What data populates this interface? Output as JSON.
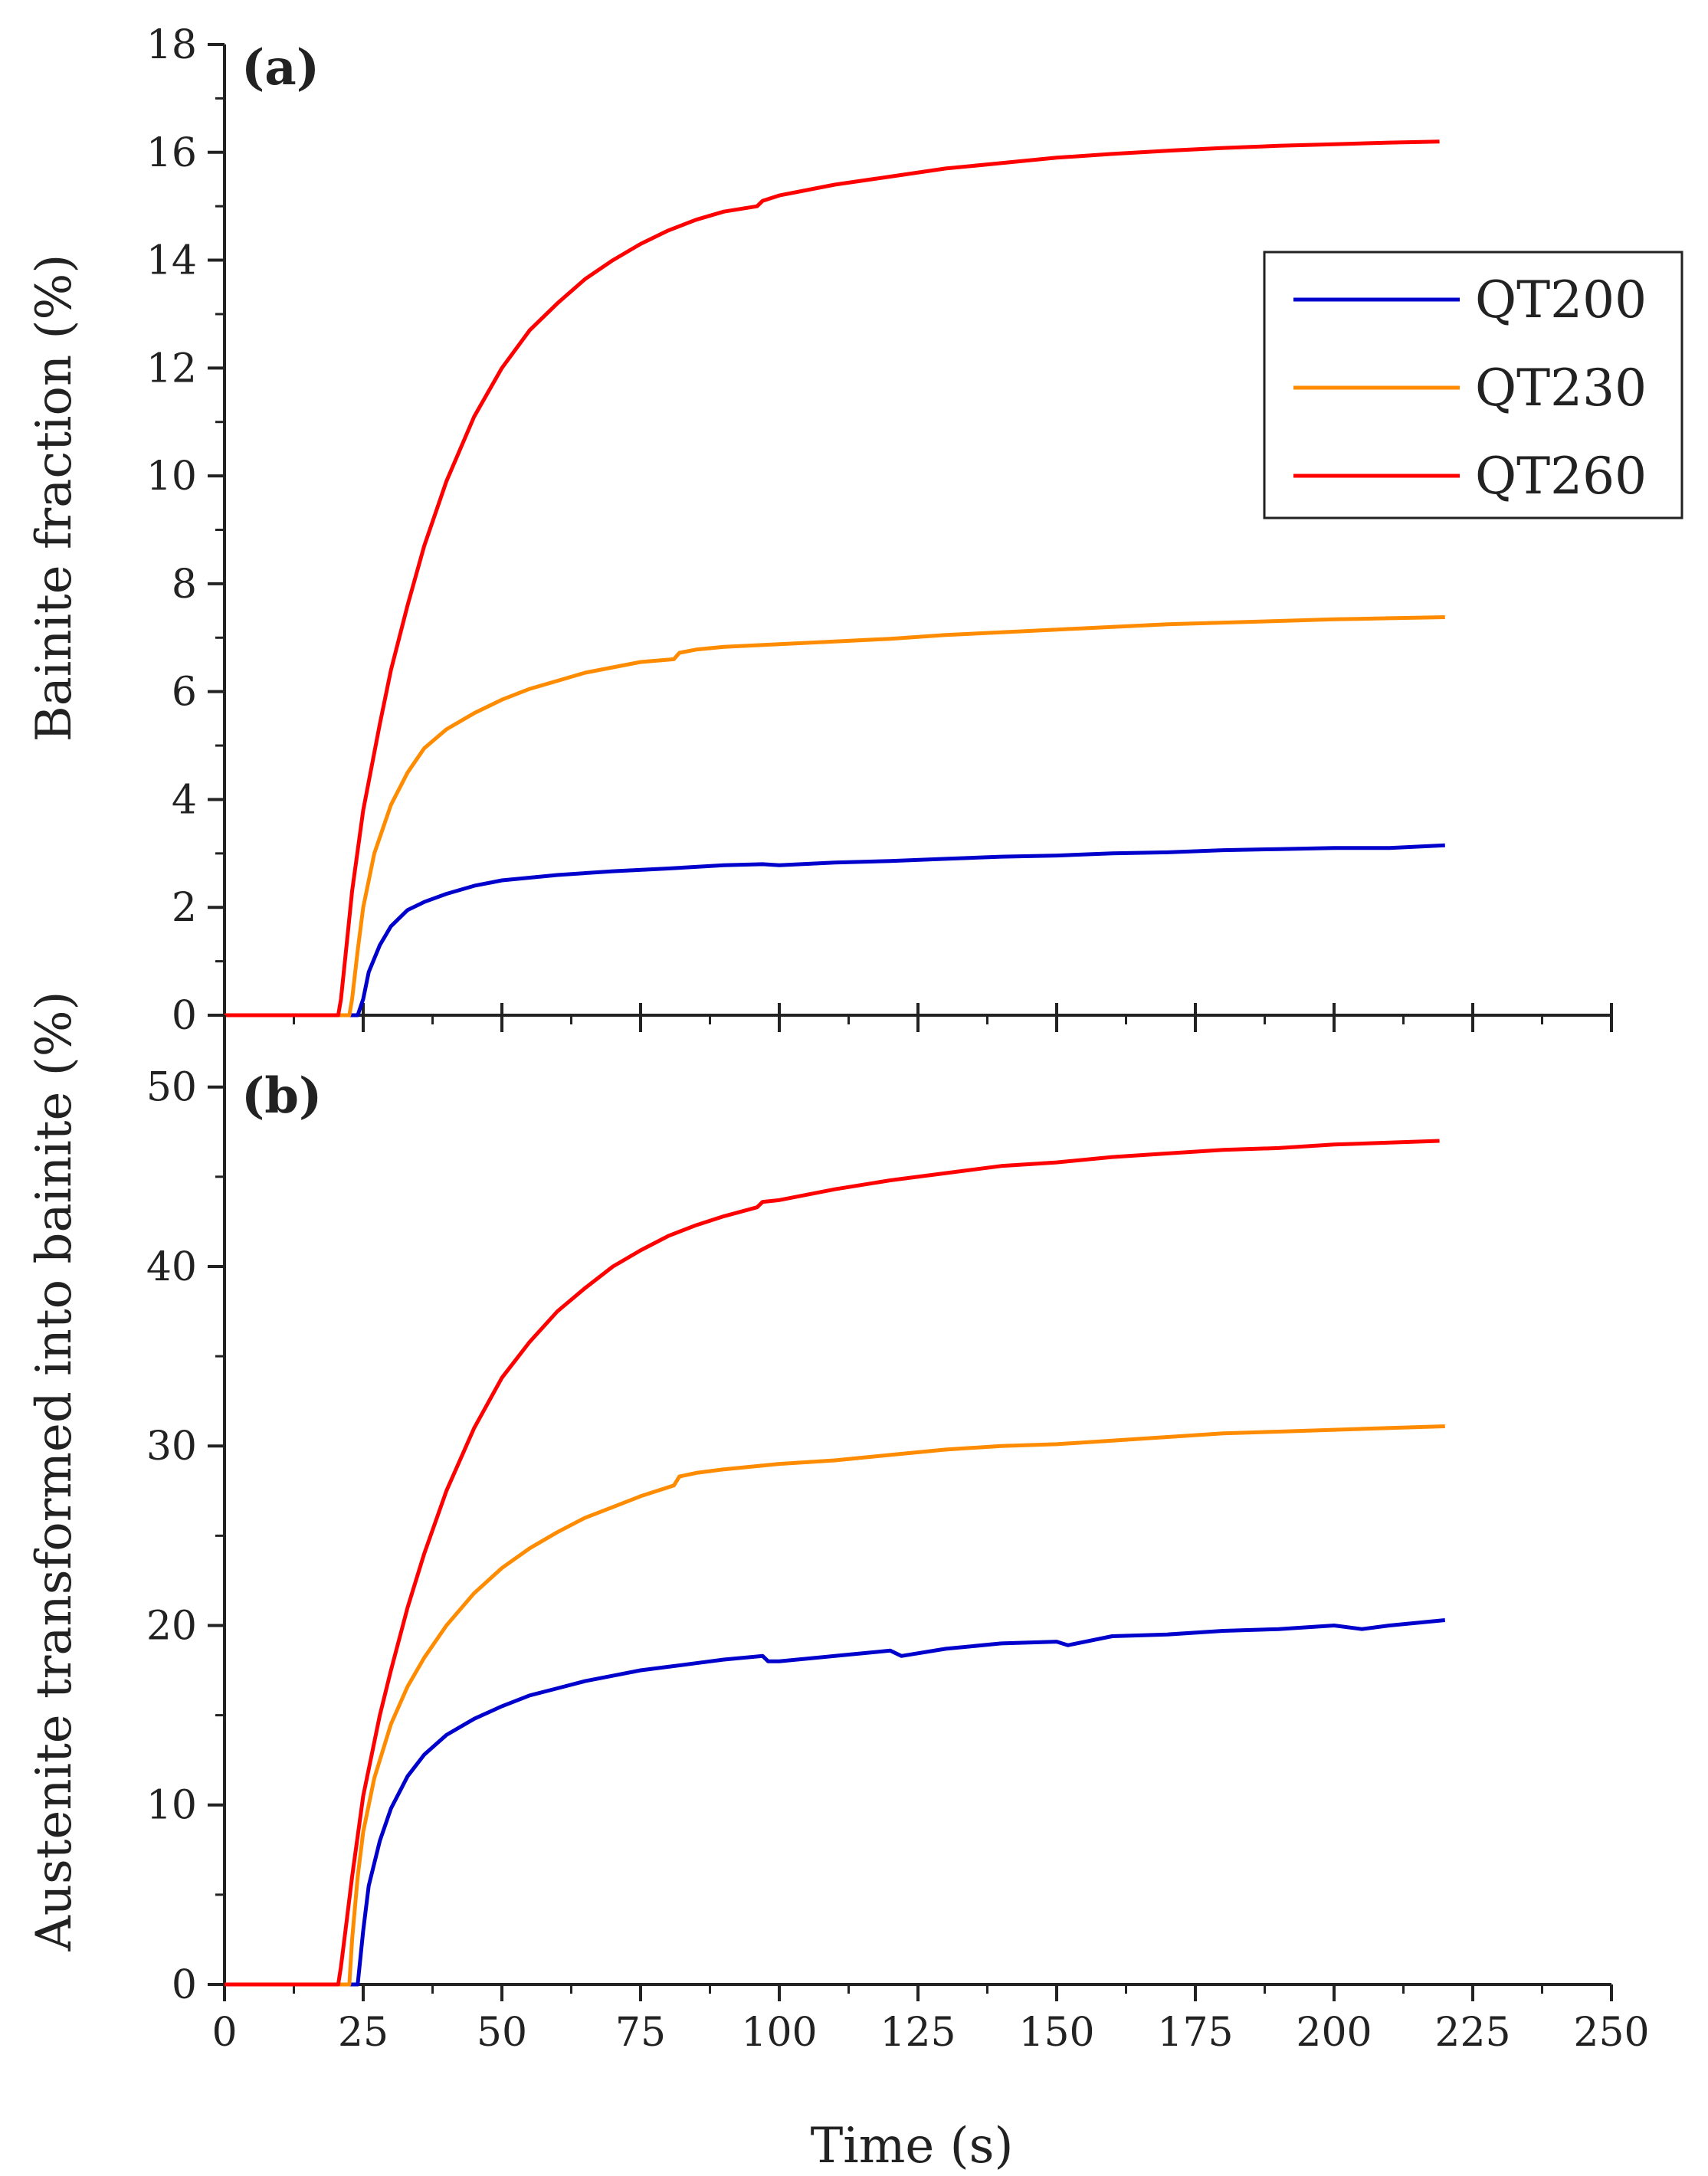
{
  "chart_data": [
    {
      "type": "line",
      "panel_label": "(a)",
      "xlabel": "",
      "ylabel": "Bainite fraction (%)",
      "xlim": [
        0,
        250
      ],
      "ylim": [
        0,
        18
      ],
      "xticks": [
        0,
        25,
        50,
        75,
        100,
        125,
        150,
        175,
        200,
        225,
        250
      ],
      "yticks": [
        0,
        2,
        4,
        6,
        8,
        10,
        12,
        14,
        16,
        18
      ],
      "legend": {
        "position": "top-right",
        "entries": [
          "QT200",
          "QT230",
          "QT260"
        ]
      },
      "series": [
        {
          "name": "QT200",
          "color": "#0000cc",
          "x": [
            0,
            10,
            20,
            24,
            25,
            26,
            28,
            30,
            33,
            36,
            40,
            45,
            50,
            60,
            70,
            80,
            90,
            97,
            100,
            110,
            120,
            130,
            140,
            150,
            160,
            170,
            180,
            190,
            200,
            210,
            220
          ],
          "y": [
            0,
            0,
            0,
            0,
            0.3,
            0.8,
            1.3,
            1.65,
            1.95,
            2.1,
            2.25,
            2.4,
            2.5,
            2.6,
            2.67,
            2.72,
            2.78,
            2.8,
            2.78,
            2.83,
            2.86,
            2.9,
            2.94,
            2.96,
            3.0,
            3.02,
            3.06,
            3.08,
            3.1,
            3.1,
            3.15
          ]
        },
        {
          "name": "QT230",
          "color": "#ff8c00",
          "x": [
            0,
            10,
            20,
            22.5,
            23,
            24,
            25,
            27,
            30,
            33,
            36,
            40,
            45,
            50,
            55,
            60,
            65,
            70,
            75,
            81,
            82,
            85,
            90,
            100,
            110,
            120,
            130,
            140,
            150,
            160,
            170,
            180,
            190,
            200,
            210,
            220
          ],
          "y": [
            0,
            0,
            0,
            0,
            0.3,
            1.2,
            2.0,
            3.0,
            3.9,
            4.5,
            4.95,
            5.3,
            5.6,
            5.85,
            6.05,
            6.2,
            6.35,
            6.45,
            6.55,
            6.6,
            6.72,
            6.78,
            6.83,
            6.88,
            6.93,
            6.98,
            7.05,
            7.1,
            7.15,
            7.2,
            7.25,
            7.28,
            7.31,
            7.34,
            7.36,
            7.38
          ]
        },
        {
          "name": "QT260",
          "color": "#ff0000",
          "x": [
            0,
            10,
            20,
            20.5,
            21,
            22,
            23,
            25,
            28,
            30,
            33,
            36,
            40,
            45,
            50,
            55,
            60,
            65,
            70,
            75,
            80,
            85,
            90,
            96,
            97,
            100,
            110,
            120,
            130,
            140,
            150,
            160,
            170,
            180,
            190,
            200,
            210,
            219
          ],
          "y": [
            0,
            0,
            0,
            0,
            0.3,
            1.3,
            2.3,
            3.8,
            5.4,
            6.4,
            7.6,
            8.7,
            9.9,
            11.1,
            12.0,
            12.7,
            13.2,
            13.65,
            14.0,
            14.3,
            14.55,
            14.75,
            14.9,
            15.0,
            15.1,
            15.2,
            15.4,
            15.55,
            15.7,
            15.8,
            15.9,
            15.97,
            16.03,
            16.08,
            16.12,
            16.15,
            16.18,
            16.2
          ]
        }
      ]
    },
    {
      "type": "line",
      "panel_label": "(b)",
      "xlabel": "Time (s)",
      "ylabel": "Austenite transformed into bainite (%)",
      "xlim": [
        0,
        250
      ],
      "ylim": [
        0,
        54
      ],
      "xticks": [
        0,
        25,
        50,
        75,
        100,
        125,
        150,
        175,
        200,
        225,
        250
      ],
      "yticks": [
        0,
        10,
        20,
        30,
        40,
        50
      ],
      "series": [
        {
          "name": "QT200",
          "color": "#0000cc",
          "x": [
            0,
            10,
            20,
            24,
            25,
            26,
            28,
            30,
            33,
            36,
            40,
            45,
            50,
            55,
            60,
            65,
            70,
            75,
            80,
            85,
            90,
            97,
            98,
            100,
            110,
            120,
            122,
            130,
            140,
            150,
            152,
            160,
            170,
            180,
            190,
            200,
            205,
            210,
            220
          ],
          "y": [
            0,
            0,
            0,
            0,
            3.0,
            5.5,
            8.0,
            9.8,
            11.6,
            12.8,
            13.9,
            14.8,
            15.5,
            16.1,
            16.5,
            16.9,
            17.2,
            17.5,
            17.7,
            17.9,
            18.1,
            18.3,
            18.0,
            18.0,
            18.3,
            18.6,
            18.3,
            18.7,
            19.0,
            19.1,
            18.9,
            19.4,
            19.5,
            19.7,
            19.8,
            20.0,
            19.8,
            20.0,
            20.3
          ]
        },
        {
          "name": "QT230",
          "color": "#ff8c00",
          "x": [
            0,
            10,
            20,
            22.5,
            23,
            24,
            25,
            27,
            30,
            33,
            36,
            40,
            45,
            50,
            55,
            60,
            65,
            70,
            75,
            81,
            82,
            85,
            90,
            100,
            110,
            120,
            130,
            140,
            150,
            160,
            170,
            180,
            190,
            200,
            210,
            220
          ],
          "y": [
            0,
            0,
            0,
            0,
            2.5,
            6.0,
            8.5,
            11.5,
            14.5,
            16.6,
            18.2,
            20.0,
            21.8,
            23.2,
            24.3,
            25.2,
            26.0,
            26.6,
            27.2,
            27.8,
            28.3,
            28.5,
            28.7,
            29.0,
            29.2,
            29.5,
            29.8,
            30.0,
            30.1,
            30.3,
            30.5,
            30.7,
            30.8,
            30.9,
            31.0,
            31.1
          ]
        },
        {
          "name": "QT260",
          "color": "#ff0000",
          "x": [
            0,
            10,
            20,
            20.5,
            21,
            22,
            23,
            25,
            28,
            30,
            33,
            36,
            40,
            45,
            50,
            55,
            60,
            65,
            70,
            75,
            80,
            85,
            90,
            96,
            97,
            100,
            110,
            120,
            130,
            140,
            150,
            160,
            170,
            180,
            190,
            200,
            210,
            219
          ],
          "y": [
            0,
            0,
            0,
            0,
            1.0,
            3.5,
            6.0,
            10.5,
            15.0,
            17.5,
            21.0,
            24.0,
            27.5,
            31.0,
            33.8,
            35.8,
            37.5,
            38.8,
            40.0,
            40.9,
            41.7,
            42.3,
            42.8,
            43.3,
            43.6,
            43.7,
            44.3,
            44.8,
            45.2,
            45.6,
            45.8,
            46.1,
            46.3,
            46.5,
            46.6,
            46.8,
            46.9,
            47.0
          ]
        }
      ]
    }
  ]
}
